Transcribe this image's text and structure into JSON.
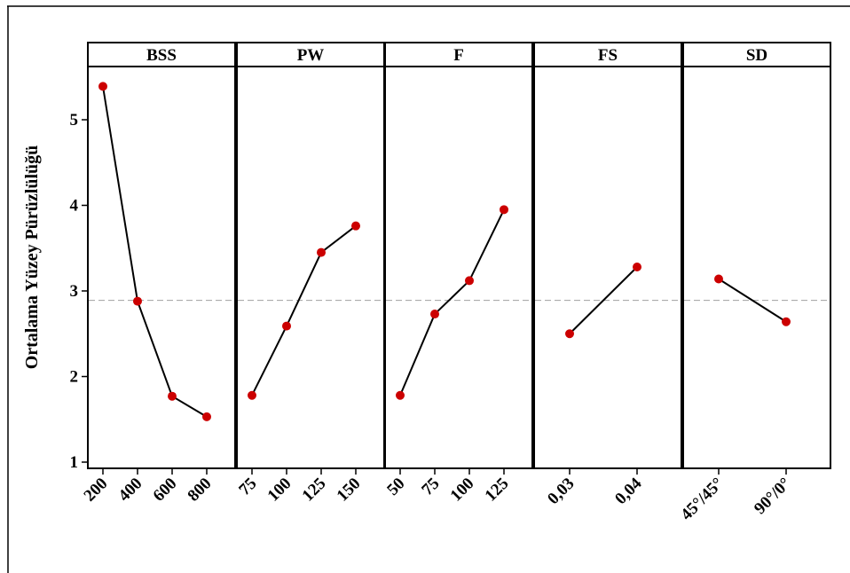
{
  "chart_data": {
    "type": "line",
    "ylabel": "Ortalama Yüzey Pürüzlülüğü",
    "ylim": [
      1,
      5.6
    ],
    "yticks": [
      "1",
      "2",
      "3",
      "4",
      "5"
    ],
    "reference_line": 2.89,
    "grid": false,
    "marker_color": "#cc0000",
    "line_color": "#000000",
    "reference_color": "#a0a0a0",
    "panels": [
      {
        "title": "BSS",
        "categories": [
          "200",
          "400",
          "600",
          "800"
        ],
        "values": [
          5.39,
          2.88,
          1.77,
          1.53
        ]
      },
      {
        "title": "PW",
        "categories": [
          "75",
          "100",
          "125",
          "150"
        ],
        "values": [
          1.78,
          2.59,
          3.45,
          3.76
        ]
      },
      {
        "title": "F",
        "categories": [
          "50",
          "75",
          "100",
          "125"
        ],
        "values": [
          1.78,
          2.73,
          3.12,
          3.95
        ]
      },
      {
        "title": "FS",
        "categories": [
          "0,03",
          "0,04"
        ],
        "values": [
          2.5,
          3.28
        ]
      },
      {
        "title": "SD",
        "categories": [
          "45°/45°",
          "90°/0°"
        ],
        "values": [
          3.14,
          2.64
        ]
      }
    ]
  }
}
